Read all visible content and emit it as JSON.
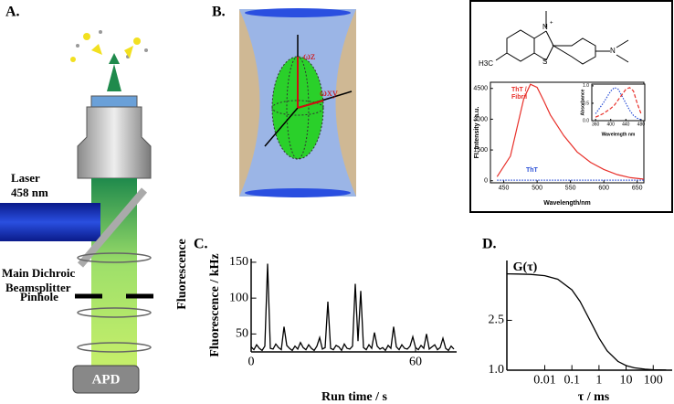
{
  "panel_a": {
    "label": "A.",
    "laser": [
      "Laser",
      "458 nm"
    ],
    "splitter": [
      "Main Dichroic",
      "Beamsplitter"
    ],
    "pinhole": "Pinhole",
    "fluorescence": "Fluorescence",
    "detector": "APD"
  },
  "panel_b": {
    "label": "B.",
    "omega_z": "ωz",
    "omega_xy": "ωxy"
  },
  "structure": {
    "atoms": [
      "N",
      "+",
      "S",
      "N",
      "H3C"
    ]
  },
  "chart_data": [
    {
      "type": "line",
      "xlabel": "Wavelength/nm",
      "ylabel": "FI. Intensity / a.u.",
      "annotations": [
        {
          "lines": [
            "ThT /",
            "Fibril"
          ],
          "color": "#e8302a"
        },
        {
          "lines": [
            "ThT"
          ],
          "color": "#2a4fd6"
        }
      ],
      "x": [
        440,
        460,
        470,
        480,
        490,
        500,
        510,
        520,
        540,
        560,
        580,
        600,
        620,
        640,
        660
      ],
      "series": [
        {
          "name": "ThT / Fibril",
          "color": "#e8302a",
          "dash": "solid",
          "values": [
            200,
            1200,
            2600,
            4000,
            4700,
            4550,
            3900,
            3200,
            2200,
            1400,
            900,
            550,
            300,
            150,
            80
          ]
        },
        {
          "name": "ThT",
          "color": "#2a4fd6",
          "dash": "dot",
          "values": [
            30,
            30,
            30,
            30,
            30,
            30,
            30,
            30,
            30,
            30,
            30,
            30,
            30,
            30,
            30
          ]
        }
      ],
      "xlim": [
        430,
        660
      ],
      "ylim": [
        -100,
        4800
      ],
      "xticks": [
        450,
        500,
        550,
        600,
        650
      ],
      "yticks": [
        0,
        1500,
        3000,
        4500
      ]
    },
    {
      "type": "line",
      "xlabel": "Wavelength nm",
      "ylabel": "Absorbance",
      "x": [
        360,
        380,
        400,
        410,
        420,
        440,
        450,
        460,
        470,
        480
      ],
      "series": [
        {
          "name": "ThT",
          "color": "#2a4fd6",
          "dash": "dot",
          "values": [
            0.2,
            0.5,
            0.85,
            0.95,
            0.9,
            0.5,
            0.3,
            0.15,
            0.07,
            0.03
          ]
        },
        {
          "name": "ThT / Fibril",
          "color": "#e8302a",
          "dash": "dash",
          "values": [
            0.1,
            0.2,
            0.35,
            0.45,
            0.6,
            0.9,
            0.95,
            0.85,
            0.5,
            0.2
          ]
        }
      ],
      "xlim": [
        350,
        490
      ],
      "ylim": [
        0,
        1.05
      ],
      "xticks": [
        360,
        400,
        440,
        480
      ],
      "yticks": [
        {
          "value": 0,
          "label": "0.0"
        },
        0.5,
        {
          "value": 1,
          "label": "1.0"
        }
      ]
    },
    {
      "type": "line",
      "title": "C.",
      "xlabel": "Run time / s",
      "ylabel": "Fluorescence / kHz",
      "x": [
        0,
        1,
        2,
        3,
        4,
        5,
        6,
        7,
        8,
        9,
        10,
        11,
        12,
        13,
        14,
        15,
        16,
        17,
        18,
        19,
        20,
        21,
        22,
        23,
        24,
        25,
        26,
        27,
        28,
        29,
        30,
        31,
        32,
        33,
        34,
        35,
        36,
        37,
        38,
        39,
        40,
        41,
        42,
        43,
        44,
        45,
        46,
        47,
        48,
        49,
        50,
        51,
        52,
        53,
        54,
        55,
        56,
        57,
        58,
        59,
        60,
        61,
        62,
        63,
        64,
        65,
        66,
        67,
        68,
        69,
        70,
        71,
        72,
        73,
        74
      ],
      "series": [
        {
          "name": "Fluorescence",
          "color": "#000000",
          "dash": "solid",
          "values": [
            32,
            28,
            35,
            30,
            27,
            33,
            148,
            30,
            29,
            36,
            31,
            28,
            60,
            34,
            30,
            27,
            33,
            29,
            38,
            31,
            28,
            35,
            30,
            27,
            33,
            45,
            29,
            31,
            95,
            30,
            28,
            34,
            32,
            27,
            36,
            30,
            29,
            33,
            120,
            40,
            110,
            31,
            28,
            35,
            30,
            52,
            33,
            29,
            31,
            27,
            34,
            30,
            60,
            32,
            28,
            35,
            30,
            29,
            33,
            46,
            31,
            28,
            34,
            30,
            50,
            29,
            32,
            35,
            28,
            31,
            44,
            30,
            27,
            33,
            29
          ]
        }
      ],
      "xlim": [
        0,
        75
      ],
      "ylim": [
        25,
        155
      ],
      "xticks": [
        0,
        60
      ],
      "yticks": [
        50,
        100,
        150
      ]
    },
    {
      "type": "line",
      "title": "D.",
      "xlabel": "τ / ms",
      "ylabel": "G(τ)",
      "xlog": true,
      "x": [
        0.0004,
        0.001,
        0.003,
        0.01,
        0.03,
        0.1,
        0.2,
        0.5,
        1,
        2,
        5,
        10,
        20,
        50,
        100,
        300
      ],
      "series": [
        {
          "name": "G",
          "color": "#000000",
          "dash": "solid",
          "values": [
            3.898,
            3.894,
            3.883,
            3.843,
            3.736,
            3.417,
            3.071,
            2.45,
            1.967,
            1.58,
            1.264,
            1.138,
            1.071,
            1.029,
            1.014,
            1.005
          ]
        }
      ],
      "xlim": [
        0.0004,
        500
      ],
      "ylim": [
        1.0,
        4.3
      ],
      "xticks": [
        0.01,
        0.1,
        1,
        10,
        100
      ],
      "yticks": [
        {
          "value": 1,
          "label": "1.0"
        },
        2.5
      ]
    }
  ]
}
